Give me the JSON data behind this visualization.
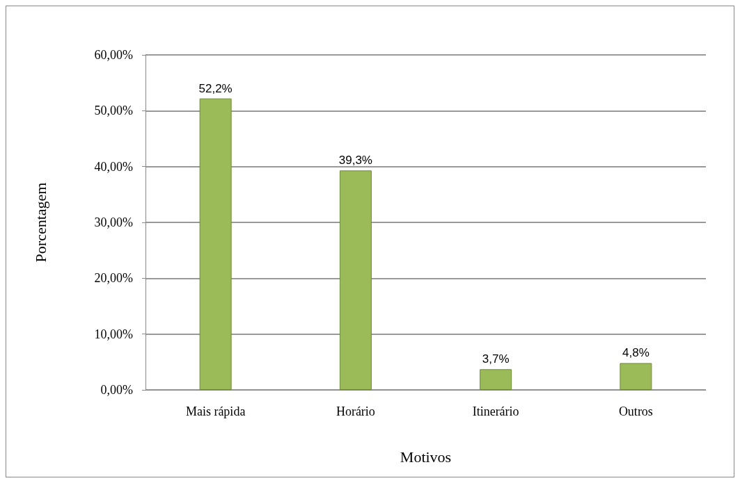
{
  "chart_data": {
    "type": "bar",
    "xlabel": "Motivos",
    "ylabel": "Porcentagem",
    "categories": [
      "Mais rápida",
      "Horário",
      "Itinerário",
      "Outros"
    ],
    "values": [
      52.2,
      39.3,
      3.7,
      4.8
    ],
    "value_labels": [
      "52,2%",
      "39,3%",
      "3,7%",
      "4,8%"
    ],
    "color": "#9bbb59",
    "ylim": [
      0,
      60
    ],
    "yticks": [
      {
        "value": 0,
        "label": "0,00%"
      },
      {
        "value": 10,
        "label": "10,00%"
      },
      {
        "value": 20,
        "label": "20,00%"
      },
      {
        "value": 30,
        "label": "30,00%"
      },
      {
        "value": 40,
        "label": "40,00%"
      },
      {
        "value": 50,
        "label": "50,00%"
      },
      {
        "value": 60,
        "label": "60,00%"
      }
    ],
    "grid": "y"
  }
}
